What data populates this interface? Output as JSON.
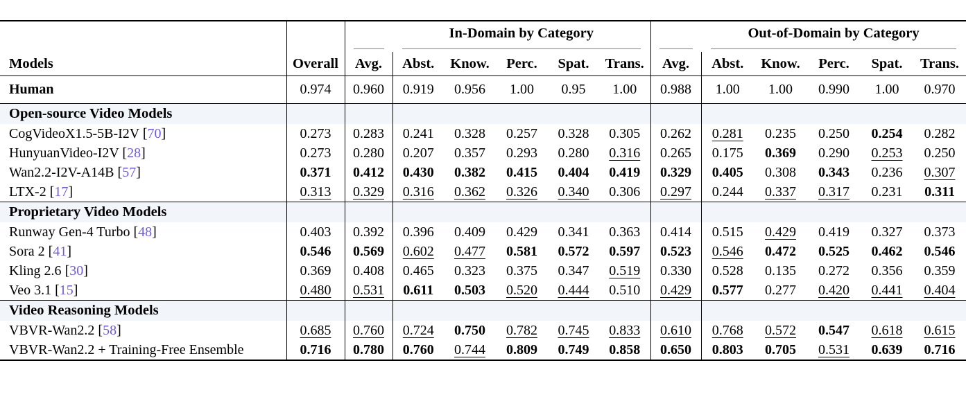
{
  "table": {
    "group_band": {
      "in_domain": "In-Domain by Category",
      "out_of_domain": "Out-of-Domain by Category"
    },
    "columns": {
      "models": "Models",
      "overall": "Overall",
      "avg": "Avg.",
      "categories": [
        "Abst.",
        "Know.",
        "Perc.",
        "Spat.",
        "Trans."
      ]
    },
    "colors": {
      "citation": "#6e5bd8",
      "section_row_bg": "#f2f6fb"
    },
    "human": {
      "model": "Human",
      "cells": [
        [
          "0.974",
          "p"
        ],
        [
          "0.960",
          "p"
        ],
        [
          "0.919",
          "p"
        ],
        [
          "0.956",
          "p"
        ],
        [
          "1.00",
          "p"
        ],
        [
          "0.95",
          "p"
        ],
        [
          "1.00",
          "p"
        ],
        [
          "0.988",
          "p"
        ],
        [
          "1.00",
          "p"
        ],
        [
          "1.00",
          "p"
        ],
        [
          "0.990",
          "p"
        ],
        [
          "1.00",
          "p"
        ],
        [
          "0.970",
          "p"
        ]
      ]
    },
    "groups": [
      {
        "title": "Open-source Video Models",
        "rows": [
          {
            "model": "CogVideoX1.5-5B-I2V",
            "cite": "70",
            "cells": [
              [
                "0.273",
                "p"
              ],
              [
                "0.283",
                "p"
              ],
              [
                "0.241",
                "p"
              ],
              [
                "0.328",
                "p"
              ],
              [
                "0.257",
                "p"
              ],
              [
                "0.328",
                "p"
              ],
              [
                "0.305",
                "p"
              ],
              [
                "0.262",
                "p"
              ],
              [
                "0.281",
                "u"
              ],
              [
                "0.235",
                "p"
              ],
              [
                "0.250",
                "p"
              ],
              [
                "0.254",
                "b"
              ],
              [
                "0.282",
                "p"
              ]
            ]
          },
          {
            "model": "HunyuanVideo-I2V",
            "cite": "28",
            "cells": [
              [
                "0.273",
                "p"
              ],
              [
                "0.280",
                "p"
              ],
              [
                "0.207",
                "p"
              ],
              [
                "0.357",
                "p"
              ],
              [
                "0.293",
                "p"
              ],
              [
                "0.280",
                "p"
              ],
              [
                "0.316",
                "u"
              ],
              [
                "0.265",
                "p"
              ],
              [
                "0.175",
                "p"
              ],
              [
                "0.369",
                "b"
              ],
              [
                "0.290",
                "p"
              ],
              [
                "0.253",
                "u"
              ],
              [
                "0.250",
                "p"
              ]
            ]
          },
          {
            "model": "Wan2.2-I2V-A14B",
            "cite": "57",
            "cells": [
              [
                "0.371",
                "b"
              ],
              [
                "0.412",
                "b"
              ],
              [
                "0.430",
                "b"
              ],
              [
                "0.382",
                "b"
              ],
              [
                "0.415",
                "b"
              ],
              [
                "0.404",
                "b"
              ],
              [
                "0.419",
                "b"
              ],
              [
                "0.329",
                "b"
              ],
              [
                "0.405",
                "b"
              ],
              [
                "0.308",
                "p"
              ],
              [
                "0.343",
                "b"
              ],
              [
                "0.236",
                "p"
              ],
              [
                "0.307",
                "u"
              ]
            ]
          },
          {
            "model": "LTX-2",
            "cite": "17",
            "cells": [
              [
                "0.313",
                "u"
              ],
              [
                "0.329",
                "u"
              ],
              [
                "0.316",
                "u"
              ],
              [
                "0.362",
                "u"
              ],
              [
                "0.326",
                "u"
              ],
              [
                "0.340",
                "u"
              ],
              [
                "0.306",
                "p"
              ],
              [
                "0.297",
                "u"
              ],
              [
                "0.244",
                "p"
              ],
              [
                "0.337",
                "u"
              ],
              [
                "0.317",
                "u"
              ],
              [
                "0.231",
                "p"
              ],
              [
                "0.311",
                "b"
              ]
            ]
          }
        ]
      },
      {
        "title": "Proprietary Video Models",
        "rows": [
          {
            "model": "Runway Gen-4 Turbo",
            "cite": "48",
            "cells": [
              [
                "0.403",
                "p"
              ],
              [
                "0.392",
                "p"
              ],
              [
                "0.396",
                "p"
              ],
              [
                "0.409",
                "p"
              ],
              [
                "0.429",
                "p"
              ],
              [
                "0.341",
                "p"
              ],
              [
                "0.363",
                "p"
              ],
              [
                "0.414",
                "p"
              ],
              [
                "0.515",
                "p"
              ],
              [
                "0.429",
                "u"
              ],
              [
                "0.419",
                "p"
              ],
              [
                "0.327",
                "p"
              ],
              [
                "0.373",
                "p"
              ]
            ]
          },
          {
            "model": "Sora 2",
            "cite": "41",
            "cells": [
              [
                "0.546",
                "b"
              ],
              [
                "0.569",
                "b"
              ],
              [
                "0.602",
                "u"
              ],
              [
                "0.477",
                "u"
              ],
              [
                "0.581",
                "b"
              ],
              [
                "0.572",
                "b"
              ],
              [
                "0.597",
                "b"
              ],
              [
                "0.523",
                "b"
              ],
              [
                "0.546",
                "u"
              ],
              [
                "0.472",
                "b"
              ],
              [
                "0.525",
                "b"
              ],
              [
                "0.462",
                "b"
              ],
              [
                "0.546",
                "b"
              ]
            ]
          },
          {
            "model": "Kling 2.6",
            "cite": "30",
            "cells": [
              [
                "0.369",
                "p"
              ],
              [
                "0.408",
                "p"
              ],
              [
                "0.465",
                "p"
              ],
              [
                "0.323",
                "p"
              ],
              [
                "0.375",
                "p"
              ],
              [
                "0.347",
                "p"
              ],
              [
                "0.519",
                "u"
              ],
              [
                "0.330",
                "p"
              ],
              [
                "0.528",
                "p"
              ],
              [
                "0.135",
                "p"
              ],
              [
                "0.272",
                "p"
              ],
              [
                "0.356",
                "p"
              ],
              [
                "0.359",
                "p"
              ]
            ]
          },
          {
            "model": "Veo 3.1",
            "cite": "15",
            "cells": [
              [
                "0.480",
                "u"
              ],
              [
                "0.531",
                "u"
              ],
              [
                "0.611",
                "b"
              ],
              [
                "0.503",
                "b"
              ],
              [
                "0.520",
                "u"
              ],
              [
                "0.444",
                "u"
              ],
              [
                "0.510",
                "p"
              ],
              [
                "0.429",
                "u"
              ],
              [
                "0.577",
                "b"
              ],
              [
                "0.277",
                "p"
              ],
              [
                "0.420",
                "u"
              ],
              [
                "0.441",
                "u"
              ],
              [
                "0.404",
                "u"
              ]
            ]
          }
        ]
      },
      {
        "title": "Video Reasoning Models",
        "rows": [
          {
            "model": "VBVR-Wan2.2",
            "cite": "58",
            "cells": [
              [
                "0.685",
                "u"
              ],
              [
                "0.760",
                "u"
              ],
              [
                "0.724",
                "u"
              ],
              [
                "0.750",
                "b"
              ],
              [
                "0.782",
                "u"
              ],
              [
                "0.745",
                "u"
              ],
              [
                "0.833",
                "u"
              ],
              [
                "0.610",
                "u"
              ],
              [
                "0.768",
                "u"
              ],
              [
                "0.572",
                "u"
              ],
              [
                "0.547",
                "b"
              ],
              [
                "0.618",
                "u"
              ],
              [
                "0.615",
                "u"
              ]
            ]
          },
          {
            "model": "VBVR-Wan2.2 + Training-Free Ensemble",
            "cite": "",
            "cells": [
              [
                "0.716",
                "b"
              ],
              [
                "0.780",
                "b"
              ],
              [
                "0.760",
                "b"
              ],
              [
                "0.744",
                "u"
              ],
              [
                "0.809",
                "b"
              ],
              [
                "0.749",
                "b"
              ],
              [
                "0.858",
                "b"
              ],
              [
                "0.650",
                "b"
              ],
              [
                "0.803",
                "b"
              ],
              [
                "0.705",
                "b"
              ],
              [
                "0.531",
                "u"
              ],
              [
                "0.639",
                "b"
              ],
              [
                "0.716",
                "b"
              ]
            ]
          }
        ]
      }
    ]
  }
}
